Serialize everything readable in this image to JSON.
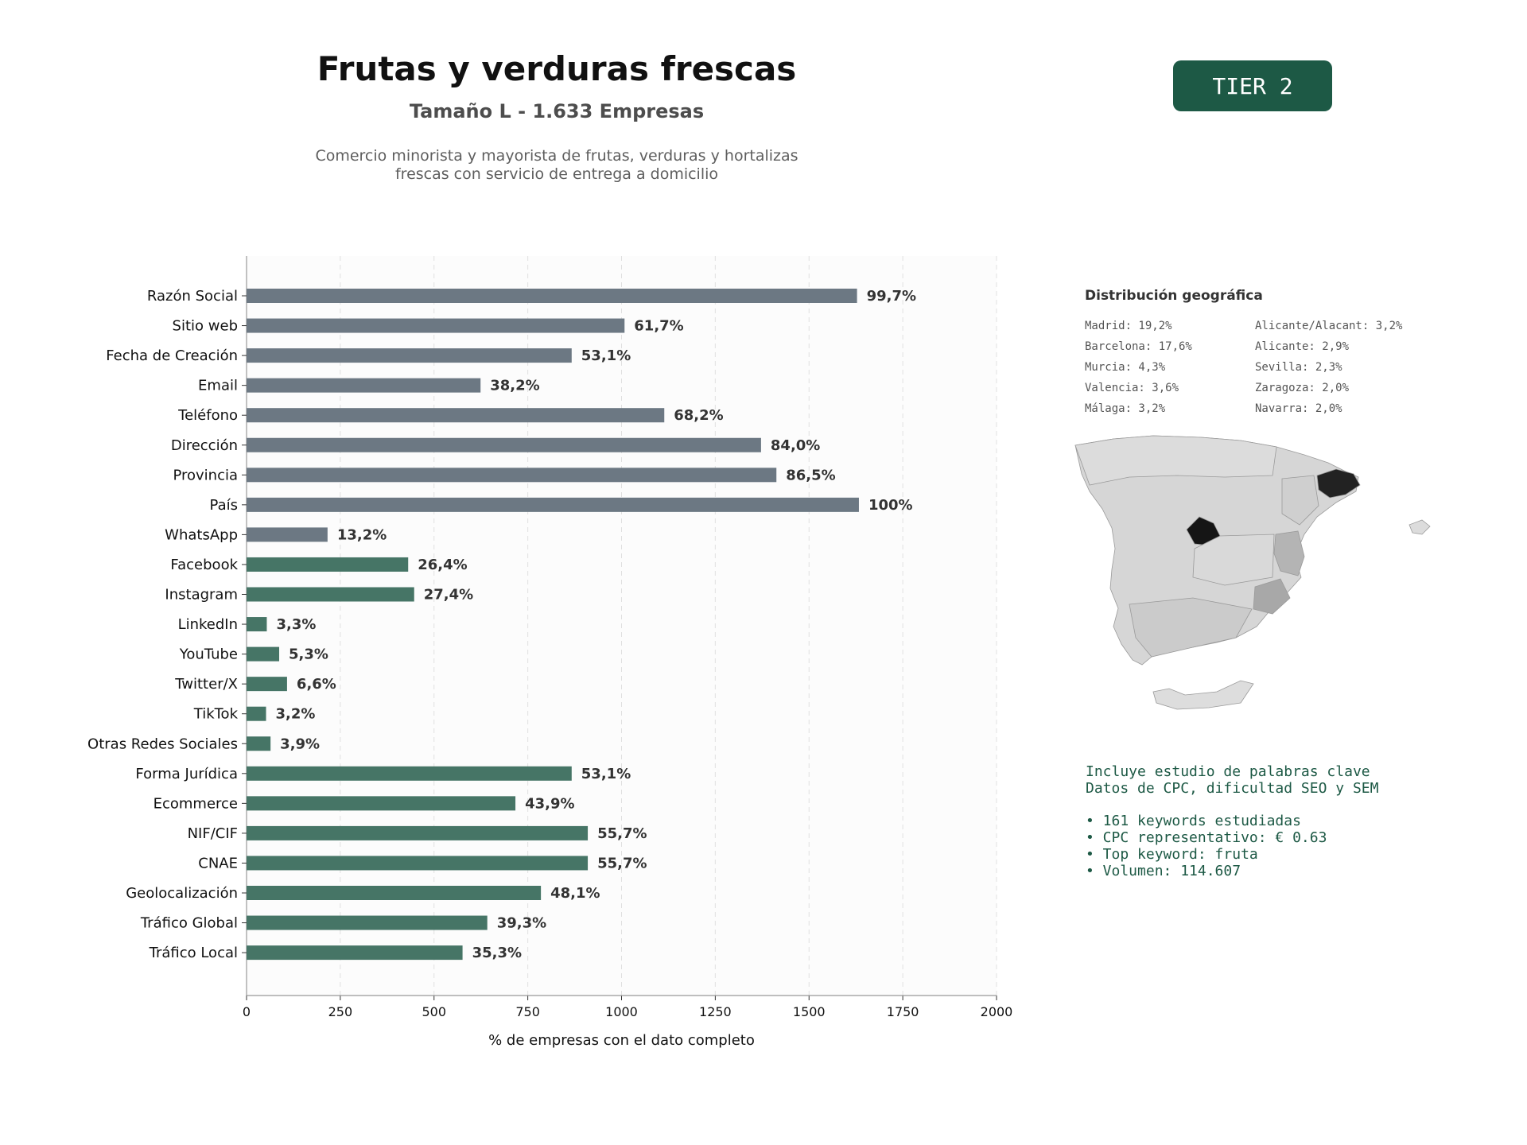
{
  "header": {
    "title": "Frutas y verduras frescas",
    "subtitle": "Tamaño L - 1.633 Empresas",
    "description": [
      "Comercio minorista y mayorista de frutas, verduras y hortalizas",
      "frescas con servicio de entrega a domicilio"
    ],
    "tier": "TIER 2"
  },
  "chart_data": {
    "type": "bar",
    "orientation": "horizontal",
    "xlabel": "% de empresas con el dato completo",
    "xlim": [
      0,
      2000
    ],
    "xticks": [
      0,
      250,
      500,
      750,
      1000,
      1250,
      1500,
      1750,
      2000
    ],
    "grid": "vertical dashed",
    "categories": [
      "Razón Social",
      "Sitio web",
      "Fecha de Creación",
      "Email",
      "Teléfono",
      "Dirección",
      "Provincia",
      "País",
      "WhatsApp",
      "Facebook",
      "Instagram",
      "LinkedIn",
      "YouTube",
      "Twitter/X",
      "TikTok",
      "Otras Redes Sociales",
      "Forma Jurídica",
      "Ecommerce",
      "NIF/CIF",
      "CNAE",
      "Geolocalización",
      "Tráfico Global",
      "Tráfico Local"
    ],
    "values": [
      1628,
      1008,
      867,
      624,
      1114,
      1372,
      1413,
      1633,
      216,
      431,
      447,
      54,
      87,
      108,
      52,
      64,
      867,
      717,
      910,
      910,
      785,
      642,
      576
    ],
    "labels": [
      "99,7%",
      "61,7%",
      "53,1%",
      "38,2%",
      "68,2%",
      "84,0%",
      "86,5%",
      "100%",
      "13,2%",
      "26,4%",
      "27,4%",
      "3,3%",
      "5,3%",
      "6,6%",
      "3,2%",
      "3,9%",
      "53,1%",
      "43,9%",
      "55,7%",
      "55,7%",
      "48,1%",
      "39,3%",
      "35,3%"
    ],
    "colors": [
      "#6c7883",
      "#6c7883",
      "#6c7883",
      "#6c7883",
      "#6c7883",
      "#6c7883",
      "#6c7883",
      "#6c7883",
      "#6c7883",
      "#467566",
      "#467566",
      "#467566",
      "#467566",
      "#467566",
      "#467566",
      "#467566",
      "#467566",
      "#467566",
      "#467566",
      "#467566",
      "#467566",
      "#467566",
      "#467566"
    ]
  },
  "geo": {
    "title": "Distribución geográfica",
    "left": [
      "Madrid: 19,2%",
      "Barcelona: 17,6%",
      "Murcia: 4,3%",
      "Valencia: 3,6%",
      "Málaga: 3,2%"
    ],
    "right": [
      "Alicante/Alacant: 3,2%",
      "Alicante: 2,9%",
      "Sevilla: 2,3%",
      "Zaragoza: 2,0%",
      "Navarra: 2,0%"
    ]
  },
  "keywords": {
    "intro": [
      "Incluye estudio de palabras clave",
      "Datos de CPC, dificultad SEO y SEM"
    ],
    "bullets": [
      "• 161 keywords estudiadas",
      "• CPC representativo: € 0.63",
      "• Top keyword: fruta",
      "• Volumen: 114.607"
    ]
  }
}
